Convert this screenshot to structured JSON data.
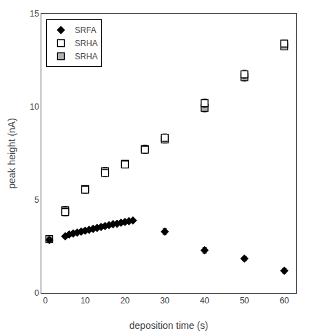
{
  "chart_data": {
    "type": "scatter",
    "xlabel": "deposition time (s)",
    "ylabel": "peak height (nA)",
    "xlim": [
      -1,
      63
    ],
    "ylim": [
      0,
      15
    ],
    "xticks": [
      0,
      10,
      20,
      30,
      40,
      50,
      60
    ],
    "yticks": [
      0,
      5,
      10,
      15
    ],
    "grid": false,
    "legend": "upper left",
    "series": [
      {
        "name": "SRFA",
        "color": "black",
        "marker": "diamond",
        "x": [
          1,
          5,
          6,
          7,
          8,
          9,
          10,
          11,
          12,
          13,
          14,
          15,
          16,
          17,
          18,
          19,
          20,
          21,
          22,
          30,
          40,
          50,
          60
        ],
        "values": [
          2.85,
          3.05,
          3.15,
          3.2,
          3.25,
          3.3,
          3.35,
          3.4,
          3.45,
          3.5,
          3.55,
          3.6,
          3.65,
          3.7,
          3.72,
          3.78,
          3.82,
          3.86,
          3.9,
          3.3,
          2.3,
          1.85,
          1.2
        ],
        "yerr": [
          0.12,
          0.1,
          0.1,
          0.1,
          0.1,
          0.1,
          0.1,
          0.08,
          0.08,
          0.08,
          0.08,
          0.08,
          0.08,
          0.08,
          0.08,
          0.08,
          0.08,
          0.08,
          0.08,
          0.15,
          0.15,
          0.12,
          0.12
        ]
      },
      {
        "name": "SRHA",
        "color": "white",
        "marker": "square",
        "x": [
          5,
          10,
          15,
          20,
          25,
          30,
          40,
          50,
          60
        ],
        "values": [
          4.35,
          5.55,
          6.45,
          6.9,
          7.7,
          8.35,
          10.2,
          11.75,
          13.4
        ],
        "yerr": [
          0.2,
          0.18,
          0.2,
          0.18,
          0.2,
          0.2,
          0.22,
          0.22,
          0.18
        ]
      },
      {
        "name": "SRHA",
        "color": "#b0b0b0",
        "marker": "square",
        "x": [
          1,
          5,
          10,
          15,
          20,
          25,
          30,
          40,
          50,
          60
        ],
        "values": [
          2.9,
          4.45,
          5.6,
          6.55,
          6.95,
          7.75,
          8.25,
          9.95,
          11.6,
          13.25
        ],
        "yerr": [
          0.1,
          0.2,
          0.18,
          0.2,
          0.18,
          0.2,
          0.2,
          0.22,
          0.22,
          0.18
        ]
      }
    ]
  }
}
